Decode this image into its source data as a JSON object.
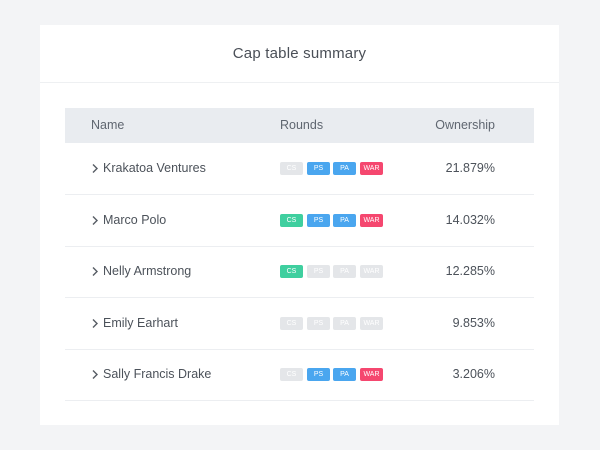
{
  "header": {
    "title": "Cap table summary"
  },
  "table": {
    "columns": [
      "Name",
      "Rounds",
      "Ownership"
    ],
    "rows": [
      {
        "name": "Krakatoa Ventures",
        "rounds": [
          {
            "label": "CS",
            "active": false
          },
          {
            "label": "PS",
            "active": true
          },
          {
            "label": "PA",
            "active": true
          },
          {
            "label": "WAR",
            "active": true
          }
        ],
        "ownership": "21.879%"
      },
      {
        "name": "Marco Polo",
        "rounds": [
          {
            "label": "CS",
            "active": true
          },
          {
            "label": "PS",
            "active": true
          },
          {
            "label": "PA",
            "active": true
          },
          {
            "label": "WAR",
            "active": true
          }
        ],
        "ownership": "14.032%"
      },
      {
        "name": "Nelly Armstrong",
        "rounds": [
          {
            "label": "CS",
            "active": true
          },
          {
            "label": "PS",
            "active": false
          },
          {
            "label": "PA",
            "active": false
          },
          {
            "label": "WAR",
            "active": false
          }
        ],
        "ownership": "12.285%"
      },
      {
        "name": "Emily Earhart",
        "rounds": [
          {
            "label": "CS",
            "active": false
          },
          {
            "label": "PS",
            "active": false
          },
          {
            "label": "PA",
            "active": false
          },
          {
            "label": "WAR",
            "active": false
          }
        ],
        "ownership": "9.853%"
      },
      {
        "name": "Sally Francis Drake",
        "rounds": [
          {
            "label": "CS",
            "active": false
          },
          {
            "label": "PS",
            "active": true
          },
          {
            "label": "PA",
            "active": true
          },
          {
            "label": "WAR",
            "active": true
          }
        ],
        "ownership": "3.206%"
      }
    ]
  }
}
